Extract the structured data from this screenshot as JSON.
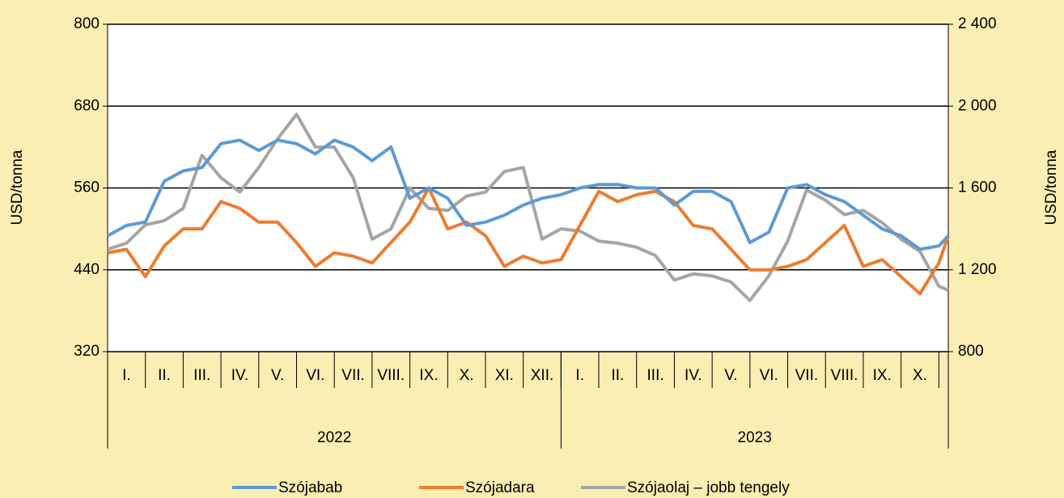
{
  "chart_data": {
    "type": "line",
    "y_label": "USD/tonna",
    "y2_label": "USD/tonna",
    "categories": [
      {
        "year": "2022",
        "months": [
          "I.",
          "II.",
          "III.",
          "IV.",
          "V.",
          "VI.",
          "VII.",
          "VIII.",
          "IX.",
          "X.",
          "XI.",
          "XII."
        ]
      },
      {
        "year": "2023",
        "months": [
          "I.",
          "II.",
          "III.",
          "IV.",
          "V.",
          "VI.",
          "VII.",
          "VIII.",
          "IX.",
          "X."
        ]
      }
    ],
    "x": [
      0,
      0.5,
      1,
      1.5,
      2,
      2.5,
      3,
      3.5,
      4,
      4.5,
      5,
      5.5,
      6,
      6.5,
      7,
      7.5,
      8,
      8.5,
      9,
      9.5,
      10,
      10.5,
      11,
      11.5,
      12,
      12.5,
      13,
      13.5,
      14,
      14.5,
      15,
      15.5,
      16,
      16.5,
      17,
      17.5,
      18,
      18.5,
      19,
      19.5,
      20,
      20.5,
      21,
      21.5,
      22,
      22.25
    ],
    "xlim": [
      0,
      22.25
    ],
    "ylim": [
      320,
      800
    ],
    "yticks": [
      320,
      440,
      560,
      680,
      800
    ],
    "y2lim": [
      800,
      2400
    ],
    "y2ticks": [
      800,
      {
        "value": 1200,
        "label": "1 200"
      },
      {
        "value": 1600,
        "label": "1 600"
      },
      {
        "value": 2000,
        "label": "2 000"
      },
      {
        "value": 2400,
        "label": "2 400"
      }
    ],
    "grid": true,
    "legend": "bottom",
    "series": [
      {
        "name": "Szójabab",
        "color": "#5b9bd5",
        "values": [
          490,
          505,
          510,
          570,
          585,
          590,
          625,
          630,
          615,
          630,
          625,
          610,
          630,
          620,
          600,
          620,
          545,
          560,
          545,
          505,
          510,
          520,
          535,
          545,
          550,
          560,
          565,
          565,
          560,
          560,
          535,
          555,
          555,
          540,
          480,
          495,
          560,
          565,
          550,
          540,
          520,
          500,
          490,
          470,
          475,
          490
        ]
      },
      {
        "name": "Szójadara",
        "color": "#ed7d31",
        "values": [
          465,
          470,
          430,
          475,
          500,
          500,
          540,
          530,
          510,
          510,
          480,
          445,
          465,
          460,
          450,
          480,
          510,
          560,
          500,
          510,
          490,
          445,
          460,
          450,
          455,
          505,
          555,
          540,
          550,
          555,
          540,
          505,
          500,
          470,
          440,
          440,
          445,
          455,
          480,
          505,
          445,
          455,
          430,
          405,
          450,
          490
        ]
      },
      {
        "name": "Szójaolaj – jobb tengely",
        "color": "#a5a5a5",
        "axis": "y2",
        "values": [
          1300,
          1330,
          1420,
          1440,
          1500,
          1760,
          1650,
          1580,
          1700,
          1840,
          1960,
          1800,
          1800,
          1650,
          1350,
          1400,
          1600,
          1500,
          1490,
          1560,
          1580,
          1680,
          1700,
          1350,
          1400,
          1390,
          1340,
          1330,
          1310,
          1270,
          1150,
          1180,
          1170,
          1140,
          1050,
          1170,
          1340,
          1590,
          1540,
          1470,
          1490,
          1430,
          1350,
          1290,
          1120,
          1100
        ]
      }
    ]
  }
}
